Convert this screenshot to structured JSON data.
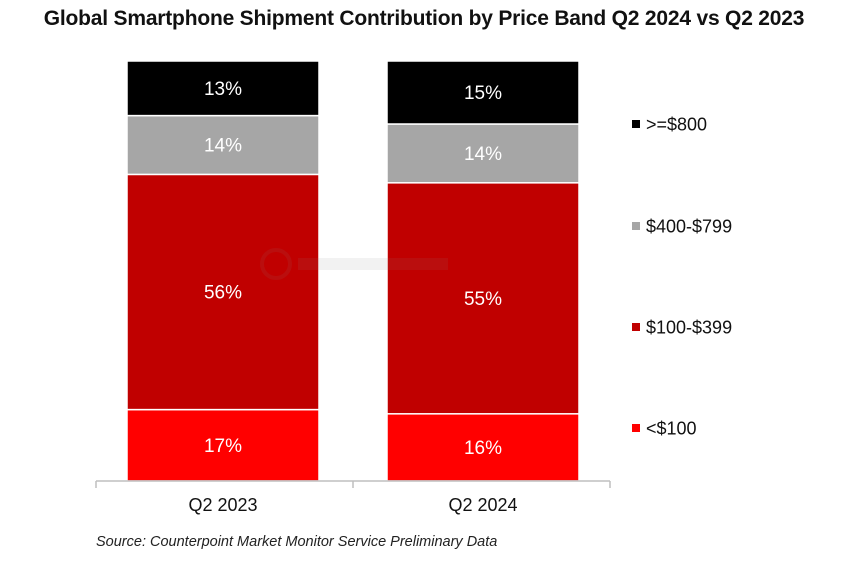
{
  "colors": {
    "gte800": "#000000",
    "r400_799": "#a6a6a6",
    "r100_399": "#c00000",
    "lt100": "#ff0000",
    "axis": "#bfbfbf",
    "divider": "#ffffff"
  },
  "chart_data": {
    "type": "bar",
    "stacked": true,
    "title": "Global Smartphone Shipment Contribution by Price Band Q2 2024 vs Q2 2023",
    "categories": [
      "Q2 2023",
      "Q2 2024"
    ],
    "series": [
      {
        "name": "<$100",
        "color": "#ff0000",
        "values": [
          17,
          16
        ],
        "labels": [
          "17%",
          "16%"
        ]
      },
      {
        "name": "$100-$399",
        "color": "#c00000",
        "values": [
          56,
          55
        ],
        "labels": [
          "56%",
          "55%"
        ]
      },
      {
        "name": "$400-$799",
        "color": "#a6a6a6",
        "values": [
          14,
          14
        ],
        "labels": [
          "14%",
          "14%"
        ]
      },
      {
        "name": ">=$800",
        "color": "#000000",
        "values": [
          13,
          15
        ],
        "labels": [
          "13%",
          "15%"
        ]
      }
    ],
    "legend_order": [
      ">=$800",
      "$400-$799",
      "$100-$399",
      "<$100"
    ],
    "legend_position": "right",
    "ylim": [
      0,
      100
    ],
    "xlabel": "",
    "ylabel": "",
    "grid": false
  },
  "source": "Source: Counterpoint Market Monitor Service Preliminary Data"
}
